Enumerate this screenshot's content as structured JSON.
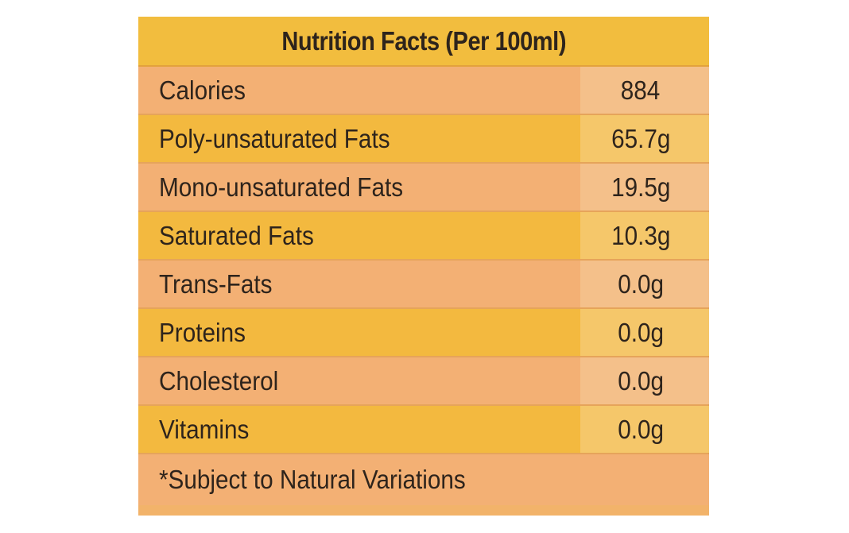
{
  "label": {
    "title": "Nutrition Facts (Per 100ml)",
    "rows": [
      {
        "name": "Calories",
        "value": "884"
      },
      {
        "name": "Poly-unsaturated Fats",
        "value": "65.7g"
      },
      {
        "name": "Mono-unsaturated Fats",
        "value": "19.5g"
      },
      {
        "name": "Saturated Fats",
        "value": "10.3g"
      },
      {
        "name": "Trans-Fats",
        "value": "0.0g"
      },
      {
        "name": "Proteins",
        "value": "0.0g"
      },
      {
        "name": "Cholesterol",
        "value": "0.0g"
      },
      {
        "name": "Vitamins",
        "value": "0.0g"
      }
    ],
    "footnote": "*Subject to Natural Variations"
  },
  "colors": {
    "header": "#f2bd3e",
    "row_peach": "#f3b074",
    "row_yellow": "#f3b93f",
    "text": "#2e241c"
  }
}
